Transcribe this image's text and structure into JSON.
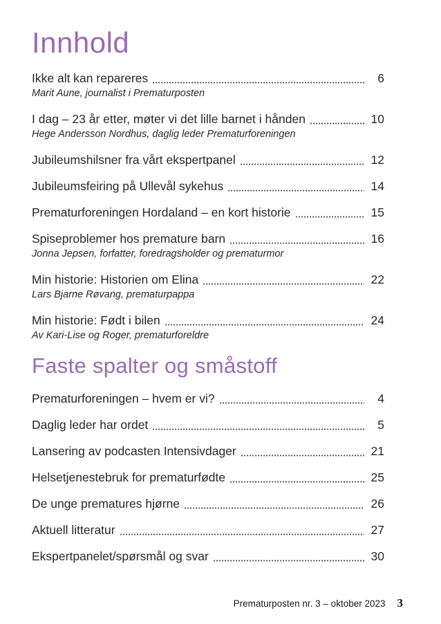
{
  "sections": [
    {
      "title": "Innhold",
      "entries": [
        {
          "title": "Ikke alt kan repareres",
          "page": "6",
          "subtitle": "Marit Aune, journalist i Prematurposten"
        },
        {
          "title": "I dag – 23 år etter, møter vi det lille barnet i hånden",
          "page": "10",
          "subtitle": "Hege Andersson Nordhus, daglig leder Prematurforeningen"
        },
        {
          "title": "Jubileumshilsner fra vårt ekspertpanel",
          "page": "12",
          "subtitle": ""
        },
        {
          "title": "Jubileumsfeiring på Ullevål sykehus",
          "page": "14",
          "subtitle": ""
        },
        {
          "title": "Prematurforeningen Hordaland – en kort historie",
          "page": "15",
          "subtitle": ""
        },
        {
          "title": "Spiseproblemer hos premature barn",
          "page": "16",
          "subtitle": "Jonna Jepsen, forfatter, foredragsholder og prematurmor"
        },
        {
          "title": "Min historie: Historien om Elina",
          "page": "22",
          "subtitle": "Lars Bjarne Røvang, prematurpappa"
        },
        {
          "title": "Min historie: Født i bilen",
          "page": "24",
          "subtitle": "Av Kari-Lise og Roger, prematurforeldre"
        }
      ]
    },
    {
      "title": "Faste spalter og småstoff",
      "entries": [
        {
          "title": "Prematurforeningen – hvem er vi?",
          "page": "4",
          "subtitle": ""
        },
        {
          "title": "Daglig leder har ordet",
          "page": "5",
          "subtitle": ""
        },
        {
          "title": "Lansering av podcasten Intensivdager",
          "page": "21",
          "subtitle": ""
        },
        {
          "title": "Helsetjenestebruk for prematurfødte",
          "page": "25",
          "subtitle": ""
        },
        {
          "title": "De unge prematures hjørne",
          "page": "26",
          "subtitle": ""
        },
        {
          "title": "Aktuell litteratur",
          "page": "27",
          "subtitle": ""
        },
        {
          "title": "Ekspertpanelet/spørsmål og svar",
          "page": "30",
          "subtitle": ""
        }
      ]
    }
  ],
  "footer": {
    "issue": "Prematurposten nr. 3 – oktober 2023",
    "page_number": "3"
  },
  "colors": {
    "heading_purple": "#9b6ab4",
    "body_text": "#2b2728"
  }
}
